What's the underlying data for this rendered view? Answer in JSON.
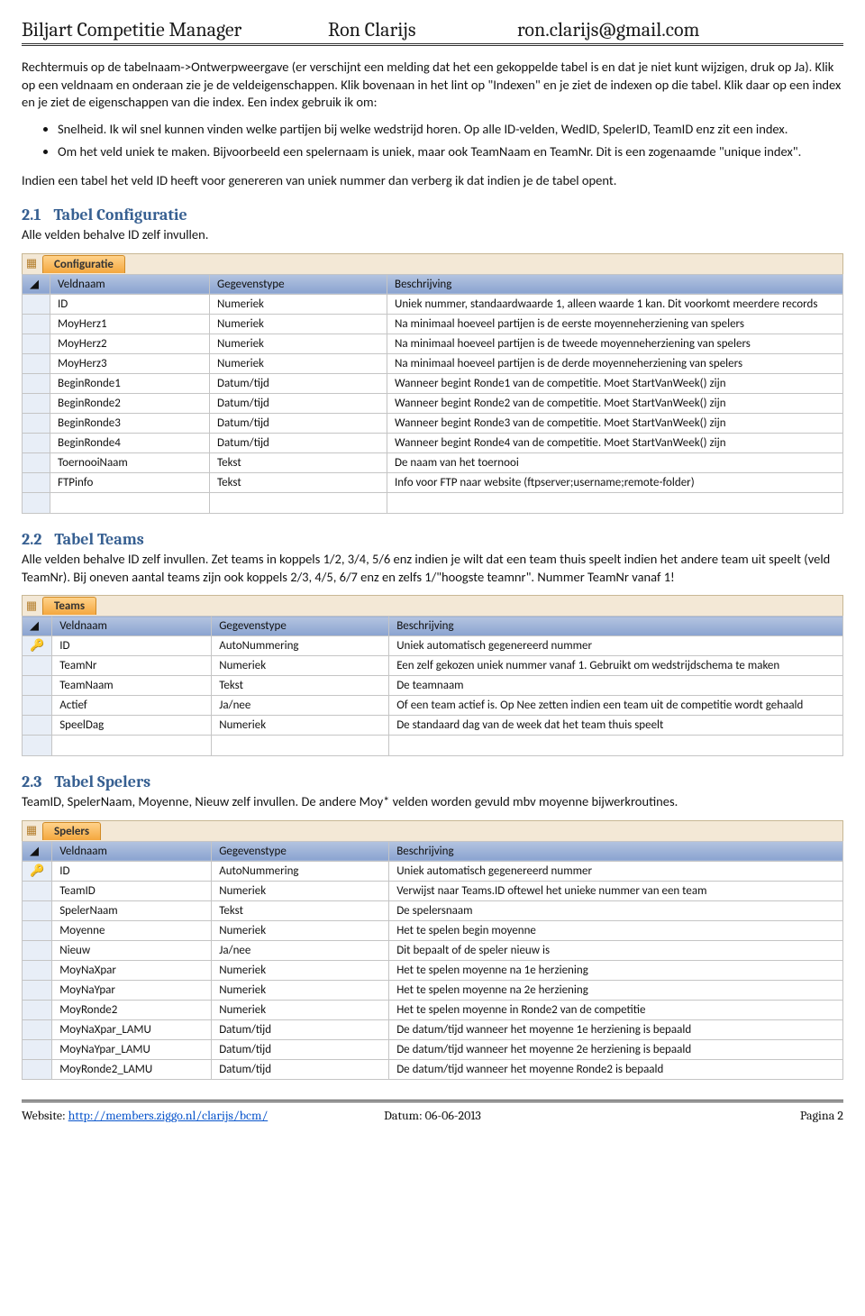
{
  "header": {
    "title": "Biljart Competitie Manager",
    "author": "Ron Clarijs",
    "email": "ron.clarijs@gmail.com"
  },
  "intro_para": "Rechtermuis op de tabelnaam->Ontwerpweergave (er verschijnt een melding dat het een gekoppelde tabel is en dat je niet kunt wijzigen, druk op Ja). Klik op een veldnaam en onderaan zie je de veldeigenschappen. Klik bovenaan in het lint op \"Indexen\" en je ziet de indexen op die tabel. Klik daar op een index en je ziet de eigenschappen van die index. Een index gebruik ik om:",
  "intro_bullets": [
    "Snelheid. Ik wil snel kunnen vinden welke partijen bij welke wedstrijd horen. Op alle ID-velden, WedID, SpelerID, TeamID enz zit een index.",
    "Om het veld uniek te maken. Bijvoorbeeld een spelernaam is uniek, maar ook TeamNaam en TeamNr. Dit is een zogenaamde \"unique index\"."
  ],
  "intro_after": "Indien een tabel het veld ID heeft voor genereren van uniek nummer dan verberg ik dat indien je de tabel opent.",
  "sections": {
    "s1": {
      "num": "2.1",
      "title": "Tabel Configuratie",
      "intro": "Alle velden behalve ID zelf invullen."
    },
    "s2": {
      "num": "2.2",
      "title": "Tabel Teams",
      "intro": "Alle velden behalve ID zelf invullen. Zet teams in koppels 1/2, 3/4, 5/6 enz indien je wilt dat een team thuis speelt indien het andere team uit speelt (veld TeamNr). Bij oneven aantal teams zijn ook koppels 2/3, 4/5, 6/7 enz en zelfs 1/\"hoogste teamnr\". Nummer TeamNr vanaf 1!"
    },
    "s3": {
      "num": "2.3",
      "title": "Tabel Spelers",
      "intro": "TeamID, SpelerNaam,  Moyenne, Nieuw zelf invullen. De andere Moy* velden worden gevuld mbv moyenne bijwerkroutines."
    }
  },
  "table_headers": {
    "c1": "Veldnaam",
    "c2": "Gegevenstype",
    "c3": "Beschrijving"
  },
  "tables": {
    "configuratie": {
      "tab": "Configuratie",
      "rows": [
        {
          "k": "",
          "n": "ID",
          "t": "Numeriek",
          "d": "Uniek nummer, standaardwaarde 1, alleen waarde 1 kan. Dit voorkomt meerdere records"
        },
        {
          "k": "",
          "n": "MoyHerz1",
          "t": "Numeriek",
          "d": "Na minimaal hoeveel partijen is de eerste moyenneherziening van spelers"
        },
        {
          "k": "",
          "n": "MoyHerz2",
          "t": "Numeriek",
          "d": "Na minimaal hoeveel partijen is de tweede moyenneherziening van spelers"
        },
        {
          "k": "",
          "n": "MoyHerz3",
          "t": "Numeriek",
          "d": "Na minimaal hoeveel partijen is de derde moyenneherziening van spelers"
        },
        {
          "k": "",
          "n": "BeginRonde1",
          "t": "Datum/tijd",
          "d": "Wanneer begint Ronde1 van de competitie. Moet StartVanWeek() zijn"
        },
        {
          "k": "",
          "n": "BeginRonde2",
          "t": "Datum/tijd",
          "d": "Wanneer begint Ronde2 van de competitie. Moet StartVanWeek() zijn"
        },
        {
          "k": "",
          "n": "BeginRonde3",
          "t": "Datum/tijd",
          "d": "Wanneer begint Ronde3 van de competitie. Moet StartVanWeek() zijn"
        },
        {
          "k": "",
          "n": "BeginRonde4",
          "t": "Datum/tijd",
          "d": "Wanneer begint Ronde4 van de competitie. Moet StartVanWeek() zijn"
        },
        {
          "k": "",
          "n": "ToernooiNaam",
          "t": "Tekst",
          "d": "De naam van het toernooi"
        },
        {
          "k": "",
          "n": "FTPinfo",
          "t": "Tekst",
          "d": "Info voor FTP naar website (ftpserver;username;remote-folder)"
        }
      ]
    },
    "teams": {
      "tab": "Teams",
      "rows": [
        {
          "k": "🔑",
          "n": "ID",
          "t": "AutoNummering",
          "d": "Uniek automatisch gegenereerd nummer"
        },
        {
          "k": "",
          "n": "TeamNr",
          "t": "Numeriek",
          "d": "Een zelf gekozen uniek nummer vanaf 1. Gebruikt om wedstrijdschema te maken"
        },
        {
          "k": "",
          "n": "TeamNaam",
          "t": "Tekst",
          "d": "De teamnaam"
        },
        {
          "k": "",
          "n": "Actief",
          "t": "Ja/nee",
          "d": "Of een team actief is. Op Nee zetten indien een team uit de competitie wordt gehaald"
        },
        {
          "k": "",
          "n": "SpeelDag",
          "t": "Numeriek",
          "d": "De standaard dag van de week dat het team thuis speelt"
        }
      ]
    },
    "spelers": {
      "tab": "Spelers",
      "rows": [
        {
          "k": "🔑",
          "n": "ID",
          "t": "AutoNummering",
          "d": "Uniek automatisch gegenereerd nummer"
        },
        {
          "k": "",
          "n": "TeamID",
          "t": "Numeriek",
          "d": "Verwijst naar Teams.ID oftewel het unieke nummer van een team"
        },
        {
          "k": "",
          "n": "SpelerNaam",
          "t": "Tekst",
          "d": "De spelersnaam"
        },
        {
          "k": "",
          "n": "Moyenne",
          "t": "Numeriek",
          "d": "Het te spelen begin moyenne"
        },
        {
          "k": "",
          "n": "Nieuw",
          "t": "Ja/nee",
          "d": "Dit bepaalt of de speler nieuw is"
        },
        {
          "k": "",
          "n": "MoyNaXpar",
          "t": "Numeriek",
          "d": "Het te spelen moyenne na 1e herziening"
        },
        {
          "k": "",
          "n": "MoyNaYpar",
          "t": "Numeriek",
          "d": "Het te spelen moyenne na 2e herziening"
        },
        {
          "k": "",
          "n": "MoyRonde2",
          "t": "Numeriek",
          "d": "Het te spelen moyenne in Ronde2 van de competitie"
        },
        {
          "k": "",
          "n": "MoyNaXpar_LAMU",
          "t": "Datum/tijd",
          "d": "De datum/tijd wanneer het moyenne 1e herziening is bepaald"
        },
        {
          "k": "",
          "n": "MoyNaYpar_LAMU",
          "t": "Datum/tijd",
          "d": "De datum/tijd wanneer het moyenne 2e herziening is bepaald"
        },
        {
          "k": "",
          "n": "MoyRonde2_LAMU",
          "t": "Datum/tijd",
          "d": "De datum/tijd wanneer het moyenne Ronde2 is bepaald"
        }
      ]
    }
  },
  "footer": {
    "website_label": "Website: ",
    "website_url": "http://members.ziggo.nl/clarijs/bcm/",
    "date_label": "Datum: ",
    "date_value": "06-06-2013",
    "page_label": "Pagina 2"
  }
}
